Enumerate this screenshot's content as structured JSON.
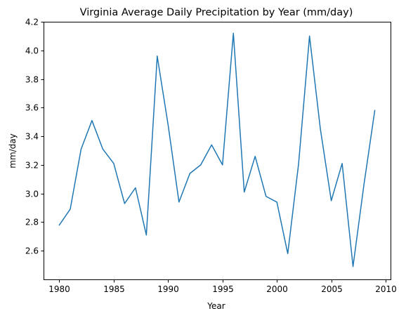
{
  "chart_data": {
    "type": "line",
    "title": "Virginia Average Daily Precipitation by Year (mm/day)",
    "xlabel": "Year",
    "ylabel": "mm/day",
    "xlim": [
      1978.55,
      2010.45
    ],
    "ylim": [
      2.4,
      4.2
    ],
    "x_ticks": [
      1980,
      1985,
      1990,
      1995,
      2000,
      2005,
      2010
    ],
    "x_tick_labels": [
      "1980",
      "1985",
      "1990",
      "1995",
      "2000",
      "2005",
      "2010"
    ],
    "y_ticks": [
      2.6,
      2.8,
      3.0,
      3.2,
      3.4,
      3.6,
      3.8,
      4.0,
      4.2
    ],
    "y_tick_labels": [
      "2.6",
      "2.8",
      "3.0",
      "3.2",
      "3.4",
      "3.6",
      "3.8",
      "4.0",
      "4.2"
    ],
    "grid": false,
    "series": [
      {
        "color": "#1f77b4",
        "x": [
          1980,
          1981,
          1982,
          1983,
          1984,
          1985,
          1986,
          1987,
          1988,
          1989,
          1990,
          1991,
          1992,
          1993,
          1994,
          1995,
          1996,
          1997,
          1998,
          1999,
          2000,
          2001,
          2002,
          2003,
          2004,
          2005,
          2006,
          2007,
          2008,
          2009
        ],
        "y": [
          2.78,
          2.89,
          3.31,
          3.51,
          3.31,
          3.21,
          2.93,
          3.04,
          2.71,
          3.96,
          3.48,
          2.94,
          3.14,
          3.2,
          3.34,
          3.2,
          4.12,
          3.01,
          3.26,
          2.98,
          2.94,
          2.58,
          3.21,
          4.1,
          3.45,
          2.95,
          3.21,
          2.49,
          3.06,
          3.58
        ]
      }
    ]
  }
}
